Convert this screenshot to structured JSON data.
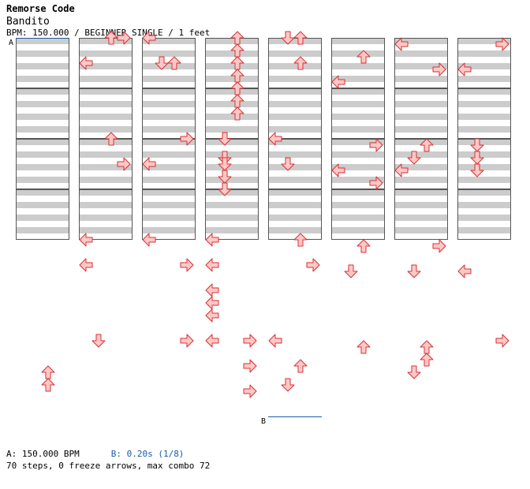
{
  "header": {
    "title": "Remorse Code",
    "song": "Bandito",
    "info": "BPM: 150.000 / BEGINNER SINGLE / 1 feet"
  },
  "markers": [
    {
      "label": "A",
      "col": 0,
      "row": 0,
      "color": "#1a5aa8"
    },
    {
      "label": "B",
      "col": 4,
      "row": 5,
      "color": "#1a5aa8"
    }
  ],
  "footer": {
    "a_text": "A: 150.000 BPM",
    "b_text": "B: 0.20s (1/8)",
    "stats": "70 steps, 0 freeze arrows, max combo 72"
  },
  "colors": {
    "arrow_fill": "#ffc8c8",
    "arrow_stroke": "#d83030",
    "stripe": "#cccccc",
    "border": "#555555",
    "marker": "#1a5aa8"
  },
  "chart_data": {
    "type": "table",
    "columns": 8,
    "rows_per_column": 4,
    "subdivisions_per_row": 8,
    "lanes": [
      "left",
      "down",
      "up",
      "right"
    ],
    "notes": [
      {
        "col": 0,
        "row": 3,
        "sub": 5,
        "dir": "up"
      },
      {
        "col": 0,
        "row": 3,
        "sub": 7,
        "dir": "up"
      },
      {
        "col": 1,
        "row": 0,
        "sub": 0,
        "dir": "up"
      },
      {
        "col": 1,
        "row": 0,
        "sub": 4,
        "dir": "left"
      },
      {
        "col": 1,
        "row": 0,
        "sub": 0,
        "dir": "right"
      },
      {
        "col": 1,
        "row": 1,
        "sub": 0,
        "dir": "up"
      },
      {
        "col": 1,
        "row": 1,
        "sub": 4,
        "dir": "right"
      },
      {
        "col": 1,
        "row": 2,
        "sub": 0,
        "dir": "left"
      },
      {
        "col": 1,
        "row": 2,
        "sub": 4,
        "dir": "left"
      },
      {
        "col": 1,
        "row": 3,
        "sub": 0,
        "dir": "down"
      },
      {
        "col": 2,
        "row": 0,
        "sub": 0,
        "dir": "left"
      },
      {
        "col": 2,
        "row": 0,
        "sub": 4,
        "dir": "up"
      },
      {
        "col": 2,
        "row": 0,
        "sub": 4,
        "dir": "down"
      },
      {
        "col": 2,
        "row": 1,
        "sub": 0,
        "dir": "right"
      },
      {
        "col": 2,
        "row": 1,
        "sub": 4,
        "dir": "left"
      },
      {
        "col": 2,
        "row": 2,
        "sub": 0,
        "dir": "left"
      },
      {
        "col": 2,
        "row": 2,
        "sub": 4,
        "dir": "right"
      },
      {
        "col": 2,
        "row": 3,
        "sub": 0,
        "dir": "right"
      },
      {
        "col": 3,
        "row": 0,
        "sub": 0,
        "dir": "up"
      },
      {
        "col": 3,
        "row": 0,
        "sub": 2,
        "dir": "up"
      },
      {
        "col": 3,
        "row": 0,
        "sub": 4,
        "dir": "up"
      },
      {
        "col": 3,
        "row": 0,
        "sub": 6,
        "dir": "up"
      },
      {
        "col": 3,
        "row": 0,
        "sub": 8,
        "dir": "up"
      },
      {
        "col": 3,
        "row": 0,
        "sub": 10,
        "dir": "up"
      },
      {
        "col": 3,
        "row": 0,
        "sub": 12,
        "dir": "up"
      },
      {
        "col": 3,
        "row": 1,
        "sub": 0,
        "dir": "down"
      },
      {
        "col": 3,
        "row": 1,
        "sub": 3,
        "dir": "down"
      },
      {
        "col": 3,
        "row": 1,
        "sub": 4,
        "dir": "down"
      },
      {
        "col": 3,
        "row": 1,
        "sub": 6,
        "dir": "down"
      },
      {
        "col": 3,
        "row": 1,
        "sub": 8,
        "dir": "down"
      },
      {
        "col": 3,
        "row": 2,
        "sub": 0,
        "dir": "left"
      },
      {
        "col": 3,
        "row": 2,
        "sub": 4,
        "dir": "left"
      },
      {
        "col": 3,
        "row": 2,
        "sub": 8,
        "dir": "left"
      },
      {
        "col": 3,
        "row": 2,
        "sub": 10,
        "dir": "left"
      },
      {
        "col": 3,
        "row": 2,
        "sub": 12,
        "dir": "left"
      },
      {
        "col": 3,
        "row": 3,
        "sub": 0,
        "dir": "right"
      },
      {
        "col": 3,
        "row": 3,
        "sub": 4,
        "dir": "right"
      },
      {
        "col": 3,
        "row": 3,
        "sub": 0,
        "dir": "left"
      },
      {
        "col": 3,
        "row": 3,
        "sub": 8,
        "dir": "right"
      },
      {
        "col": 4,
        "row": 0,
        "sub": 0,
        "dir": "down"
      },
      {
        "col": 4,
        "row": 0,
        "sub": 0,
        "dir": "up"
      },
      {
        "col": 4,
        "row": 0,
        "sub": 4,
        "dir": "up"
      },
      {
        "col": 4,
        "row": 1,
        "sub": 0,
        "dir": "left"
      },
      {
        "col": 4,
        "row": 1,
        "sub": 4,
        "dir": "down"
      },
      {
        "col": 4,
        "row": 2,
        "sub": 0,
        "dir": "up"
      },
      {
        "col": 4,
        "row": 2,
        "sub": 4,
        "dir": "right"
      },
      {
        "col": 4,
        "row": 3,
        "sub": 0,
        "dir": "left"
      },
      {
        "col": 4,
        "row": 3,
        "sub": 4,
        "dir": "up"
      },
      {
        "col": 4,
        "row": 3,
        "sub": 7,
        "dir": "down"
      },
      {
        "col": 5,
        "row": 0,
        "sub": 3,
        "dir": "up"
      },
      {
        "col": 5,
        "row": 0,
        "sub": 7,
        "dir": "left"
      },
      {
        "col": 5,
        "row": 1,
        "sub": 7,
        "dir": "right"
      },
      {
        "col": 5,
        "row": 1,
        "sub": 1,
        "dir": "right"
      },
      {
        "col": 5,
        "row": 1,
        "sub": 5,
        "dir": "left"
      },
      {
        "col": 5,
        "row": 2,
        "sub": 1,
        "dir": "up"
      },
      {
        "col": 5,
        "row": 2,
        "sub": 5,
        "dir": "down"
      },
      {
        "col": 5,
        "row": 3,
        "sub": 1,
        "dir": "up"
      },
      {
        "col": 6,
        "row": 0,
        "sub": 1,
        "dir": "left"
      },
      {
        "col": 6,
        "row": 0,
        "sub": 5,
        "dir": "right"
      },
      {
        "col": 6,
        "row": 1,
        "sub": 1,
        "dir": "up"
      },
      {
        "col": 6,
        "row": 1,
        "sub": 3,
        "dir": "down"
      },
      {
        "col": 6,
        "row": 1,
        "sub": 5,
        "dir": "left"
      },
      {
        "col": 6,
        "row": 2,
        "sub": 1,
        "dir": "right"
      },
      {
        "col": 6,
        "row": 2,
        "sub": 5,
        "dir": "down"
      },
      {
        "col": 6,
        "row": 3,
        "sub": 1,
        "dir": "up"
      },
      {
        "col": 6,
        "row": 3,
        "sub": 3,
        "dir": "up"
      },
      {
        "col": 6,
        "row": 3,
        "sub": 5,
        "dir": "down"
      },
      {
        "col": 7,
        "row": 0,
        "sub": 1,
        "dir": "right"
      },
      {
        "col": 7,
        "row": 0,
        "sub": 5,
        "dir": "left"
      },
      {
        "col": 7,
        "row": 1,
        "sub": 1,
        "dir": "down"
      },
      {
        "col": 7,
        "row": 1,
        "sub": 3,
        "dir": "down"
      },
      {
        "col": 7,
        "row": 1,
        "sub": 5,
        "dir": "down"
      },
      {
        "col": 7,
        "row": 2,
        "sub": 5,
        "dir": "left"
      },
      {
        "col": 7,
        "row": 3,
        "sub": 0,
        "dir": "right"
      }
    ]
  }
}
